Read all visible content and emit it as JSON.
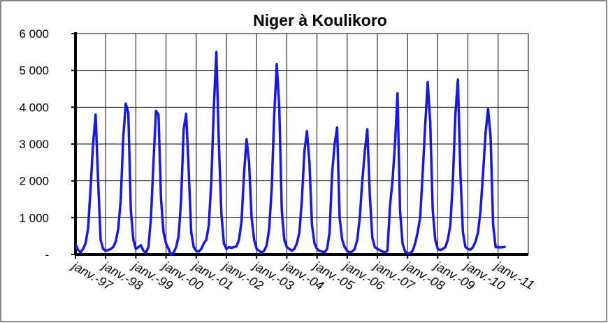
{
  "chart_data": {
    "type": "line",
    "title": "Niger à Koulikoro",
    "color": "#1818e0",
    "grid": true,
    "x": [
      "1997-01",
      "1997-02",
      "1997-03",
      "1997-04",
      "1997-05",
      "1997-06",
      "1997-07",
      "1997-08",
      "1997-09",
      "1997-10",
      "1997-11",
      "1997-12",
      "1998-01",
      "1998-02",
      "1998-03",
      "1998-04",
      "1998-05",
      "1998-06",
      "1998-07",
      "1998-08",
      "1998-09",
      "1998-10",
      "1998-11",
      "1998-12",
      "1999-01",
      "1999-02",
      "1999-03",
      "1999-04",
      "1999-05",
      "1999-06",
      "1999-07",
      "1999-08",
      "1999-09",
      "1999-10",
      "1999-11",
      "1999-12",
      "2000-01",
      "2000-02",
      "2000-03",
      "2000-04",
      "2000-05",
      "2000-06",
      "2000-07",
      "2000-08",
      "2000-09",
      "2000-10",
      "2000-11",
      "2000-12",
      "2001-01",
      "2001-02",
      "2001-03",
      "2001-04",
      "2001-05",
      "2001-06",
      "2001-07",
      "2001-08",
      "2001-09",
      "2001-10",
      "2001-11",
      "2001-12",
      "2002-01",
      "2002-02",
      "2002-03",
      "2002-04",
      "2002-05",
      "2002-06",
      "2002-07",
      "2002-08",
      "2002-09",
      "2002-10",
      "2002-11",
      "2002-12",
      "2003-01",
      "2003-02",
      "2003-03",
      "2003-04",
      "2003-05",
      "2003-06",
      "2003-07",
      "2003-08",
      "2003-09",
      "2003-10",
      "2003-11",
      "2003-12",
      "2004-01",
      "2004-02",
      "2004-03",
      "2004-04",
      "2004-05",
      "2004-06",
      "2004-07",
      "2004-08",
      "2004-09",
      "2004-10",
      "2004-11",
      "2004-12",
      "2005-01",
      "2005-02",
      "2005-03",
      "2005-04",
      "2005-05",
      "2005-06",
      "2005-07",
      "2005-08",
      "2005-09",
      "2005-10",
      "2005-11",
      "2005-12",
      "2006-01",
      "2006-02",
      "2006-03",
      "2006-04",
      "2006-05",
      "2006-06",
      "2006-07",
      "2006-08",
      "2006-09",
      "2006-10",
      "2006-11",
      "2006-12",
      "2007-01",
      "2007-02",
      "2007-03",
      "2007-04",
      "2007-05",
      "2007-06",
      "2007-07",
      "2007-08",
      "2007-09",
      "2007-10",
      "2007-11",
      "2007-12",
      "2008-01",
      "2008-02",
      "2008-03",
      "2008-04",
      "2008-05",
      "2008-06",
      "2008-07",
      "2008-08",
      "2008-09",
      "2008-10",
      "2008-11",
      "2008-12",
      "2009-01",
      "2009-02",
      "2009-03",
      "2009-04",
      "2009-05",
      "2009-06",
      "2009-07",
      "2009-08",
      "2009-09",
      "2009-10",
      "2009-11",
      "2009-12",
      "2010-01",
      "2010-02",
      "2010-03",
      "2010-04",
      "2010-05",
      "2010-06",
      "2010-07",
      "2010-08",
      "2010-09",
      "2010-10",
      "2010-11",
      "2010-12",
      "2011-01",
      "2011-02",
      "2011-03",
      "2011-04"
    ],
    "values": [
      300,
      120,
      60,
      150,
      300,
      700,
      1800,
      3000,
      3800,
      2000,
      400,
      150,
      100,
      120,
      150,
      200,
      350,
      700,
      1500,
      3200,
      4100,
      3850,
      1200,
      400,
      150,
      200,
      250,
      100,
      50,
      200,
      1000,
      2500,
      3900,
      3800,
      1500,
      600,
      300,
      150,
      0,
      50,
      200,
      500,
      1500,
      3400,
      3820,
      2300,
      600,
      200,
      100,
      80,
      150,
      300,
      400,
      800,
      2000,
      4000,
      5500,
      3000,
      1100,
      300,
      150,
      200,
      180,
      200,
      220,
      400,
      900,
      2200,
      3130,
      2500,
      1000,
      400,
      150,
      100,
      50,
      100,
      250,
      700,
      1800,
      3800,
      5170,
      4000,
      1200,
      400,
      200,
      150,
      100,
      150,
      300,
      600,
      1500,
      2800,
      3350,
      2500,
      800,
      300,
      150,
      100,
      80,
      60,
      150,
      600,
      2200,
      3000,
      3450,
      1000,
      400,
      200,
      100,
      60,
      80,
      150,
      400,
      1000,
      2000,
      2800,
      3400,
      1600,
      450,
      200,
      150,
      120,
      80,
      60,
      100,
      1300,
      2000,
      3000,
      4380,
      1200,
      300,
      80,
      30,
      40,
      100,
      300,
      600,
      1000,
      2200,
      3500,
      4680,
      3600,
      1200,
      400,
      150,
      120,
      150,
      200,
      400,
      800,
      2000,
      3800,
      4750,
      2200,
      600,
      200,
      150,
      130,
      200,
      350,
      600,
      1200,
      2200,
      3300,
      3950,
      3200,
      800,
      200,
      200,
      190,
      200,
      210
    ],
    "xlim": [
      "1997-01",
      "2012-01"
    ],
    "xticks": [
      {
        "value": "1997-01",
        "label": "janv.-97"
      },
      {
        "value": "1998-01",
        "label": "janv.-98"
      },
      {
        "value": "1999-01",
        "label": "janv.-99"
      },
      {
        "value": "2000-01",
        "label": "janv.-00"
      },
      {
        "value": "2001-01",
        "label": "janv.-01"
      },
      {
        "value": "2002-01",
        "label": "janv.-02"
      },
      {
        "value": "2003-01",
        "label": "janv.-03"
      },
      {
        "value": "2004-01",
        "label": "janv.-04"
      },
      {
        "value": "2005-01",
        "label": "janv.-05"
      },
      {
        "value": "2006-01",
        "label": "janv.-06"
      },
      {
        "value": "2007-01",
        "label": "janv.-07"
      },
      {
        "value": "2008-01",
        "label": "janv.-08"
      },
      {
        "value": "2009-01",
        "label": "janv.-09"
      },
      {
        "value": "2010-01",
        "label": "janv.-10"
      },
      {
        "value": "2011-01",
        "label": "janv.-11"
      }
    ],
    "ylim": [
      0,
      6000
    ],
    "yticks": [
      {
        "value": 0,
        "label": "-"
      },
      {
        "value": 1000,
        "label": "1 000"
      },
      {
        "value": 2000,
        "label": "2 000"
      },
      {
        "value": 3000,
        "label": "3 000"
      },
      {
        "value": 4000,
        "label": "4 000"
      },
      {
        "value": 5000,
        "label": "5 000"
      },
      {
        "value": 6000,
        "label": "6 000"
      }
    ]
  }
}
